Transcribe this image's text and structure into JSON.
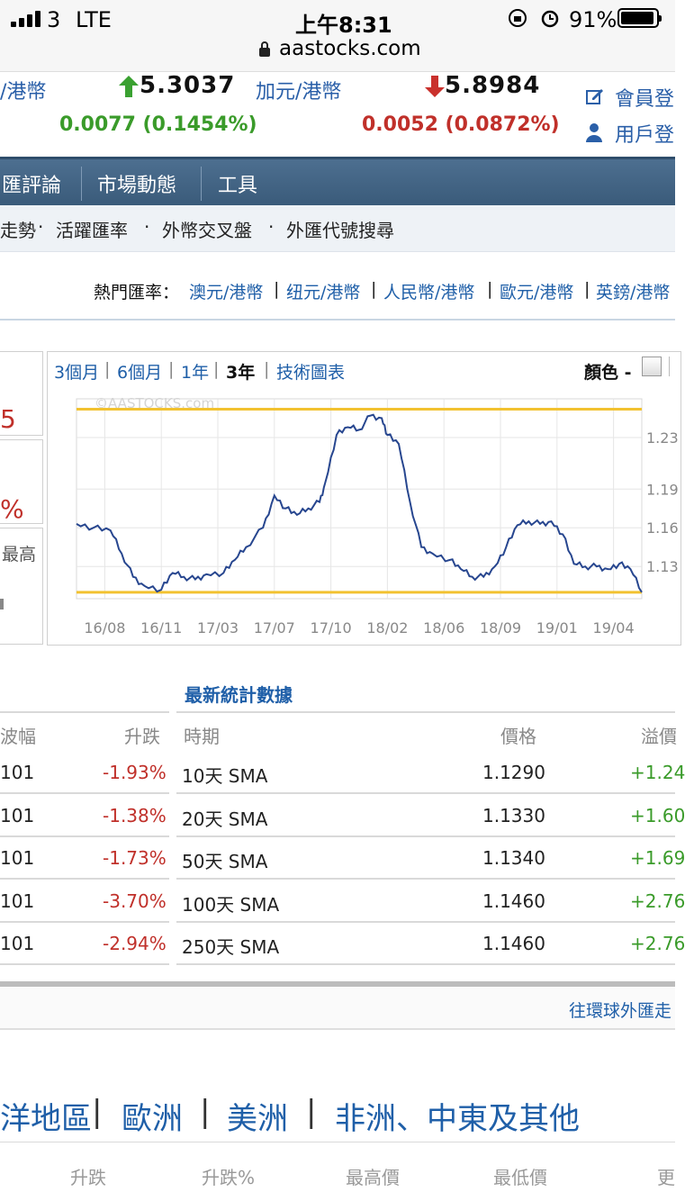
{
  "status_bar": {
    "carrier": "3",
    "network": "LTE",
    "time": "上午8:31",
    "battery": "91%",
    "url": "aastocks.com"
  },
  "ticker": {
    "left": {
      "pair": "/港幣",
      "value": "5.3037",
      "change": "0.0077 (0.1454%)",
      "direction": "up"
    },
    "right": {
      "pair": "加元/港幣",
      "value": "5.8984",
      "change": "0.0052 (0.0872%)",
      "direction": "down"
    },
    "member_login": "會員登",
    "user_login": "用戶登"
  },
  "nav": {
    "items": [
      "匯評論",
      "市場動態",
      "工具"
    ]
  },
  "subnav": {
    "items": [
      "走勢",
      "活躍匯率",
      "外幣交叉盤",
      "外匯代號搜尋"
    ],
    "sep": "·"
  },
  "hot_rates": {
    "label": "熱門匯率：",
    "items": [
      "澳元/港幣",
      "纽元/港幣",
      "人民幣/港幣",
      "歐元/港幣",
      "英鎊/港幣"
    ],
    "sep": "|"
  },
  "left_panel": {
    "value1": "5",
    "value2": "%",
    "label": "最高"
  },
  "chart_tabs": {
    "items": [
      "3個月",
      "6個月",
      "1年",
      "3年",
      "技術圖表"
    ],
    "active": "3年",
    "color_label": "顏色 -"
  },
  "chart_data": {
    "type": "line",
    "watermark": "©AASTOCKS.com",
    "xticks": [
      "16/08",
      "16/11",
      "17/03",
      "17/07",
      "17/10",
      "18/02",
      "18/06",
      "18/09",
      "19/01",
      "19/04"
    ],
    "yticks": [
      "1.23",
      "1.19",
      "1.16",
      "1.13"
    ],
    "ylim": [
      1.105,
      1.26
    ],
    "hlines": [
      1.252,
      1.11
    ],
    "line_color": "#27468f",
    "hline_color": "#f2c230",
    "x": [
      0,
      0.03,
      0.06,
      0.08,
      0.1,
      0.12,
      0.15,
      0.17,
      0.19,
      0.21,
      0.23,
      0.26,
      0.28,
      0.3,
      0.33,
      0.35,
      0.37,
      0.39,
      0.41,
      0.43,
      0.44,
      0.46,
      0.48,
      0.5,
      0.52,
      0.54,
      0.55,
      0.57,
      0.59,
      0.61,
      0.63,
      0.66,
      0.68,
      0.7,
      0.72,
      0.74,
      0.76,
      0.78,
      0.8,
      0.82,
      0.84,
      0.86,
      0.88,
      0.9,
      0.92,
      0.94,
      0.96,
      0.98,
      1.0
    ],
    "values": [
      1.163,
      1.16,
      1.158,
      1.14,
      1.122,
      1.115,
      1.112,
      1.125,
      1.122,
      1.12,
      1.124,
      1.125,
      1.135,
      1.145,
      1.16,
      1.185,
      1.175,
      1.17,
      1.175,
      1.18,
      1.195,
      1.232,
      1.238,
      1.236,
      1.247,
      1.245,
      1.232,
      1.225,
      1.18,
      1.145,
      1.14,
      1.135,
      1.128,
      1.122,
      1.122,
      1.13,
      1.145,
      1.162,
      1.165,
      1.163,
      1.165,
      1.155,
      1.132,
      1.13,
      1.13,
      1.128,
      1.132,
      1.128,
      1.11
    ]
  },
  "stats": {
    "title": "最新統計數據",
    "left_headers": [
      "波幅",
      "升跌"
    ],
    "right_headers": [
      "時期",
      "價格",
      "溢價"
    ],
    "rows": [
      {
        "vol": "101",
        "chg": "-1.93%",
        "period": "10天 SMA",
        "price": "1.1290",
        "prem": "+1.24"
      },
      {
        "vol": "101",
        "chg": "-1.38%",
        "period": "20天 SMA",
        "price": "1.1330",
        "prem": "+1.60"
      },
      {
        "vol": "101",
        "chg": "-1.73%",
        "period": "50天 SMA",
        "price": "1.1340",
        "prem": "+1.69"
      },
      {
        "vol": "101",
        "chg": "-3.70%",
        "period": "100天 SMA",
        "price": "1.1460",
        "prem": "+2.76"
      },
      {
        "vol": "101",
        "chg": "-2.94%",
        "period": "250天 SMA",
        "price": "1.1460",
        "prem": "+2.76"
      }
    ]
  },
  "footer": {
    "link": "往環球外匯走",
    "regions": [
      "洋地區",
      "歐洲",
      "美洲",
      "非洲、中東及其他"
    ],
    "region_sep": "|",
    "columns": [
      "升跌",
      "升跌%",
      "最高價",
      "最低價",
      "更"
    ]
  }
}
